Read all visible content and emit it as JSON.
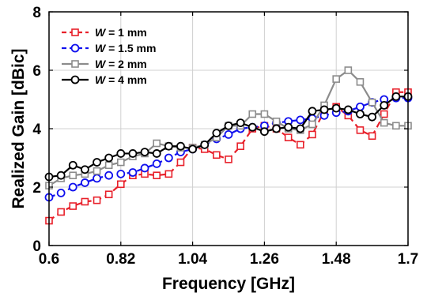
{
  "chart_data": {
    "type": "line",
    "xlabel": "Frequency [GHz]",
    "ylabel": "Realized Gain [dBic]",
    "xlim": [
      0.6,
      1.7
    ],
    "ylim": [
      0,
      8
    ],
    "xticks": [
      0.6,
      0.82,
      1.04,
      1.26,
      1.48,
      1.7
    ],
    "xtick_labels": [
      "0.6",
      "0.82",
      "1.04",
      "1.26",
      "1.48",
      "1.7"
    ],
    "yticks": [
      0,
      2,
      4,
      6,
      8
    ],
    "ytick_labels": [
      "0",
      "2",
      "4",
      "6",
      "8"
    ],
    "grid": true,
    "legend_position": "top-left",
    "x": [
      0.6,
      0.6367,
      0.6733,
      0.71,
      0.7467,
      0.7833,
      0.82,
      0.8567,
      0.8933,
      0.93,
      0.9667,
      1.0033,
      1.04,
      1.0767,
      1.1133,
      1.15,
      1.1867,
      1.2233,
      1.26,
      1.2967,
      1.3333,
      1.37,
      1.4067,
      1.4433,
      1.48,
      1.5167,
      1.5533,
      1.59,
      1.6267,
      1.6633,
      1.7
    ],
    "series": [
      {
        "legend_prefix": "W",
        "legend_suffix": " = 1 mm",
        "color": "#e8202a",
        "marker": "square",
        "dash": "dashed",
        "values": [
          0.85,
          1.15,
          1.35,
          1.5,
          1.55,
          1.75,
          2.1,
          2.4,
          2.45,
          2.4,
          2.45,
          2.85,
          3.35,
          3.3,
          3.1,
          2.95,
          3.4,
          4.0,
          4.1,
          4.0,
          3.7,
          3.45,
          3.8,
          4.6,
          4.75,
          4.45,
          3.95,
          3.75,
          4.5,
          5.25,
          5.25
        ]
      },
      {
        "legend_prefix": "W",
        "legend_suffix": " = 1.5 mm",
        "color": "#1010ee",
        "marker": "circle",
        "dash": "dashed",
        "values": [
          1.65,
          1.8,
          2.0,
          2.15,
          2.3,
          2.4,
          2.45,
          2.5,
          2.65,
          2.8,
          3.0,
          3.2,
          3.3,
          3.45,
          3.65,
          3.8,
          4.0,
          4.05,
          4.1,
          4.2,
          4.25,
          4.3,
          4.35,
          4.45,
          4.55,
          4.6,
          4.75,
          4.9,
          5.0,
          5.05,
          5.05
        ]
      },
      {
        "legend_prefix": "W",
        "legend_suffix": " = 2 mm",
        "color": "#8c8c8c",
        "marker": "square",
        "dash": "solid",
        "values": [
          2.05,
          2.3,
          2.4,
          2.45,
          2.55,
          2.75,
          2.85,
          3.05,
          3.15,
          3.5,
          3.4,
          3.35,
          3.35,
          3.45,
          3.7,
          4.1,
          4.1,
          4.5,
          4.5,
          4.25,
          4.0,
          3.95,
          4.15,
          4.8,
          5.7,
          6.0,
          5.6,
          4.9,
          4.2,
          4.1,
          4.1
        ]
      },
      {
        "legend_prefix": "W",
        "legend_suffix": " = 4 mm",
        "color": "#000000",
        "marker": "circle",
        "dash": "solid",
        "values": [
          2.35,
          2.4,
          2.75,
          2.6,
          2.85,
          3.0,
          3.15,
          3.15,
          3.2,
          3.15,
          3.4,
          3.4,
          3.3,
          3.45,
          3.85,
          4.1,
          4.2,
          4.05,
          3.9,
          4.0,
          4.05,
          4.0,
          4.6,
          4.65,
          4.7,
          4.65,
          4.5,
          4.4,
          4.8,
          5.1,
          5.1
        ]
      }
    ]
  }
}
